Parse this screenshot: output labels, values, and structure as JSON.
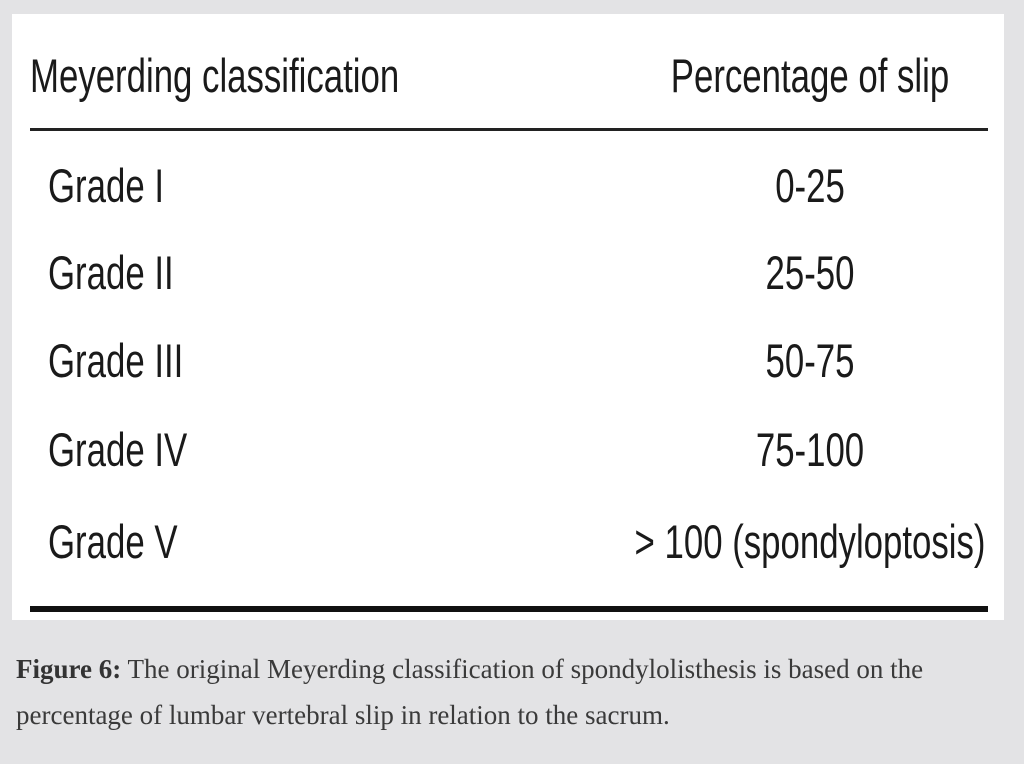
{
  "table": {
    "headers": [
      "Meyerding classification",
      "Percentage of slip"
    ],
    "rows": [
      [
        "Grade I",
        "0-25"
      ],
      [
        "Grade II",
        "25-50"
      ],
      [
        "Grade III",
        "50-75"
      ],
      [
        "Grade IV",
        "75-100"
      ],
      [
        "Grade V",
        "> 100 (spondyloptosis)"
      ]
    ]
  },
  "caption": {
    "label": "Figure 6:",
    "text": "The original Meyerding classification of spondylolisthesis is based on the percentage of lumbar vertebral slip in relation to the sacrum."
  }
}
